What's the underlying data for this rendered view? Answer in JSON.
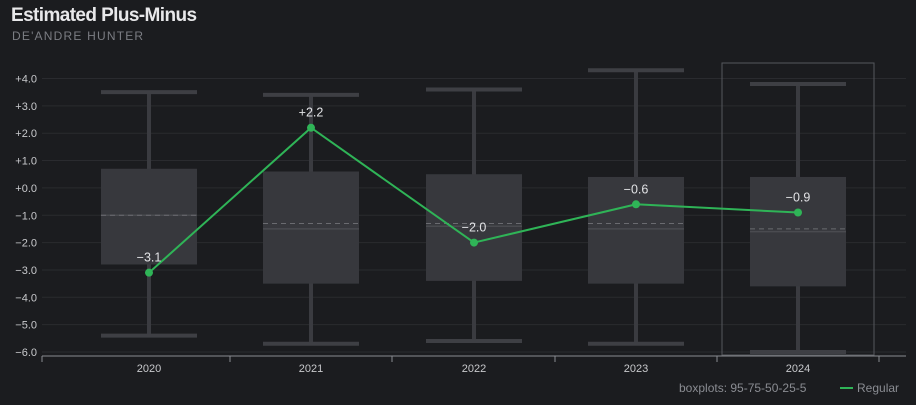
{
  "title": "Estimated Plus-Minus",
  "subtitle": "DE'ANDRE HUNTER",
  "legend": {
    "boxplots_label": "boxplots: 95-75-50-25-5",
    "series_label": "Regular",
    "series_color": "#2fb457"
  },
  "chart_data": {
    "type": "line",
    "title": "Estimated Plus-Minus",
    "ylim": [
      -6.0,
      4.0
    ],
    "y_ticks": [
      "+4.0",
      "+3.0",
      "+2.0",
      "+1.0",
      "+0.0",
      "−1.0",
      "−2.0",
      "−3.0",
      "−4.0",
      "−5.0",
      "−6.0"
    ],
    "y_tick_values": [
      4,
      3,
      2,
      1,
      0,
      -1,
      -2,
      -3,
      -4,
      -5,
      -6
    ],
    "categories": [
      "2020",
      "2021",
      "2022",
      "2023",
      "2024"
    ],
    "highlighted_category": "2024",
    "boxplots": [
      {
        "p95": 3.5,
        "p75": 0.7,
        "p50": -1.0,
        "p25": -2.8,
        "p5": -5.4,
        "mean": -1.0
      },
      {
        "p95": 3.4,
        "p75": 0.6,
        "p50": -1.5,
        "p25": -3.5,
        "p5": -5.7,
        "mean": -1.3
      },
      {
        "p95": 3.6,
        "p75": 0.5,
        "p50": -1.4,
        "p25": -3.4,
        "p5": -5.6,
        "mean": -1.3
      },
      {
        "p95": 4.3,
        "p75": 0.4,
        "p50": -1.5,
        "p25": -3.5,
        "p5": -5.7,
        "mean": -1.3
      },
      {
        "p95": 3.8,
        "p75": 0.4,
        "p50": -1.6,
        "p25": -3.6,
        "p5": -6.0,
        "mean": -1.5
      }
    ],
    "series": [
      {
        "name": "Regular",
        "values": [
          -3.1,
          2.2,
          -2.0,
          -0.6,
          -0.9
        ],
        "labels": [
          "−3.1",
          "+2.2",
          "−2.0",
          "−0.6",
          "−0.9"
        ]
      }
    ]
  }
}
